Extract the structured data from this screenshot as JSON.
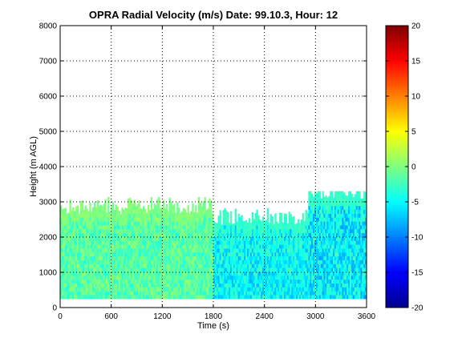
{
  "chart_data": {
    "type": "heatmap",
    "title": "OPRA Radial Velocity (m/s)  Date: 99.10.3, Hour: 12",
    "xlabel": "Time (s)",
    "ylabel": "Height (m AGL)",
    "xlim": [
      0,
      3600
    ],
    "ylim": [
      0,
      8000
    ],
    "x_ticks": [
      "0",
      "600",
      "1200",
      "1800",
      "2400",
      "3000",
      "3600"
    ],
    "y_ticks": [
      "0",
      "1000",
      "2000",
      "3000",
      "4000",
      "5000",
      "6000",
      "7000",
      "8000"
    ],
    "grid": true,
    "colorbar": {
      "range": [
        -20,
        20
      ],
      "ticks": [
        "20",
        "15",
        "10",
        "5",
        "0",
        "-5",
        "-10",
        "-15",
        "-20"
      ],
      "colormap": "jet"
    },
    "data_extent": {
      "height_range": [
        250,
        3300
      ],
      "summary": [
        {
          "time_range": [
            0,
            1800
          ],
          "top_height": 2900,
          "velocity_range": [
            -4,
            1
          ]
        },
        {
          "time_range": [
            1800,
            2900
          ],
          "top_height": 2600,
          "velocity_range": [
            -8,
            -2
          ]
        },
        {
          "time_range": [
            2900,
            3600
          ],
          "top_height": 3300,
          "velocity_range": [
            -9,
            -2
          ]
        }
      ]
    }
  }
}
